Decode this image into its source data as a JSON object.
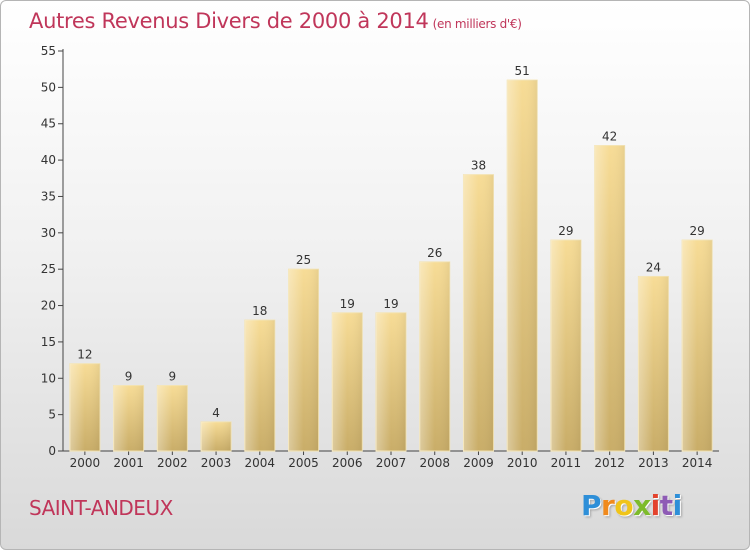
{
  "chart_data": {
    "type": "bar",
    "title": "Autres Revenus Divers de 2000 à 2014",
    "subtitle": "(en milliers d'€)",
    "categories": [
      "2000",
      "2001",
      "2002",
      "2003",
      "2004",
      "2005",
      "2006",
      "2007",
      "2008",
      "2009",
      "2010",
      "2011",
      "2012",
      "2013",
      "2014"
    ],
    "values": [
      12,
      9,
      9,
      4,
      18,
      25,
      19,
      19,
      26,
      38,
      51,
      29,
      42,
      24,
      29
    ],
    "ylim": [
      0,
      55
    ],
    "yticks": [
      0,
      5,
      10,
      15,
      20,
      25,
      30,
      35,
      40,
      45,
      50,
      55
    ],
    "grid": false,
    "bar_color": "#e6cc84"
  },
  "commune": "SAINT-ANDEUX",
  "logo": {
    "letters": [
      "P",
      "r",
      "o",
      "x",
      "i",
      "t",
      "i"
    ],
    "colors": [
      "#2e8fd8",
      "#f08a1d",
      "#f0c419",
      "#7dbb2b",
      "#e3432d",
      "#8e5bb5",
      "#2e8fd8"
    ]
  }
}
